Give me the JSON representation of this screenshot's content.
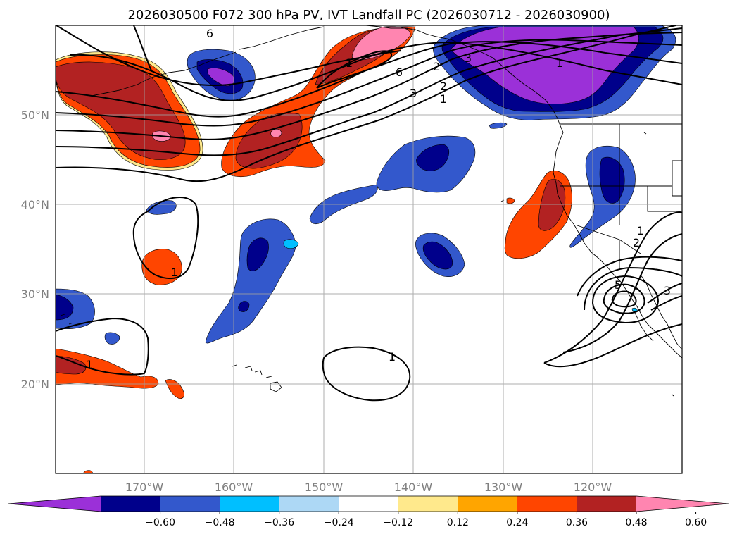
{
  "figure": {
    "title": "2026030500 F072 300 hPa PV, IVT Landfall PC (2026030712 - 2026030900)"
  },
  "map": {
    "lon_labels": [
      "170°W",
      "160°W",
      "150°W",
      "140°W",
      "130°W",
      "120°W"
    ],
    "lat_labels": [
      "50°N",
      "40°N",
      "30°N",
      "20°N"
    ],
    "gridlines": true
  },
  "colorbar": {
    "extend": "both",
    "tick_labels": [
      "−0.60",
      "−0.48",
      "−0.36",
      "−0.24",
      "−0.12",
      "0.12",
      "0.24",
      "0.36",
      "0.48",
      "0.60"
    ],
    "colors": [
      "#9b30d8",
      "#00008b",
      "#3358cc",
      "#00bfff",
      "#add8f5",
      "#ffffff",
      "#ffe98c",
      "#ffa500",
      "#ff4500",
      "#b22222",
      "#ff85b0"
    ]
  },
  "fill_colors": {
    "purple": "#9b30d8",
    "navy": "#00008b",
    "blue": "#3358cc",
    "cyan": "#00bfff",
    "lightblue": "#add8f5",
    "yellow": "#ffe98c",
    "orange": "#ffa500",
    "redorange": "#ff4500",
    "firebrick": "#b22222",
    "pink": "#ff85b0"
  },
  "contour_labels": {
    "nw_6": "6",
    "n_1": "1",
    "n_6": "6",
    "n_3": "3",
    "n_2": "2",
    "n_1b": "1",
    "ne_3": "3",
    "ne_2": "2",
    "ne_1": "1",
    "w_1": "1",
    "sw_1": "1",
    "s_1": "1",
    "se_1": "1",
    "se_2": "2",
    "se_5": "5",
    "se_3": "3"
  }
}
